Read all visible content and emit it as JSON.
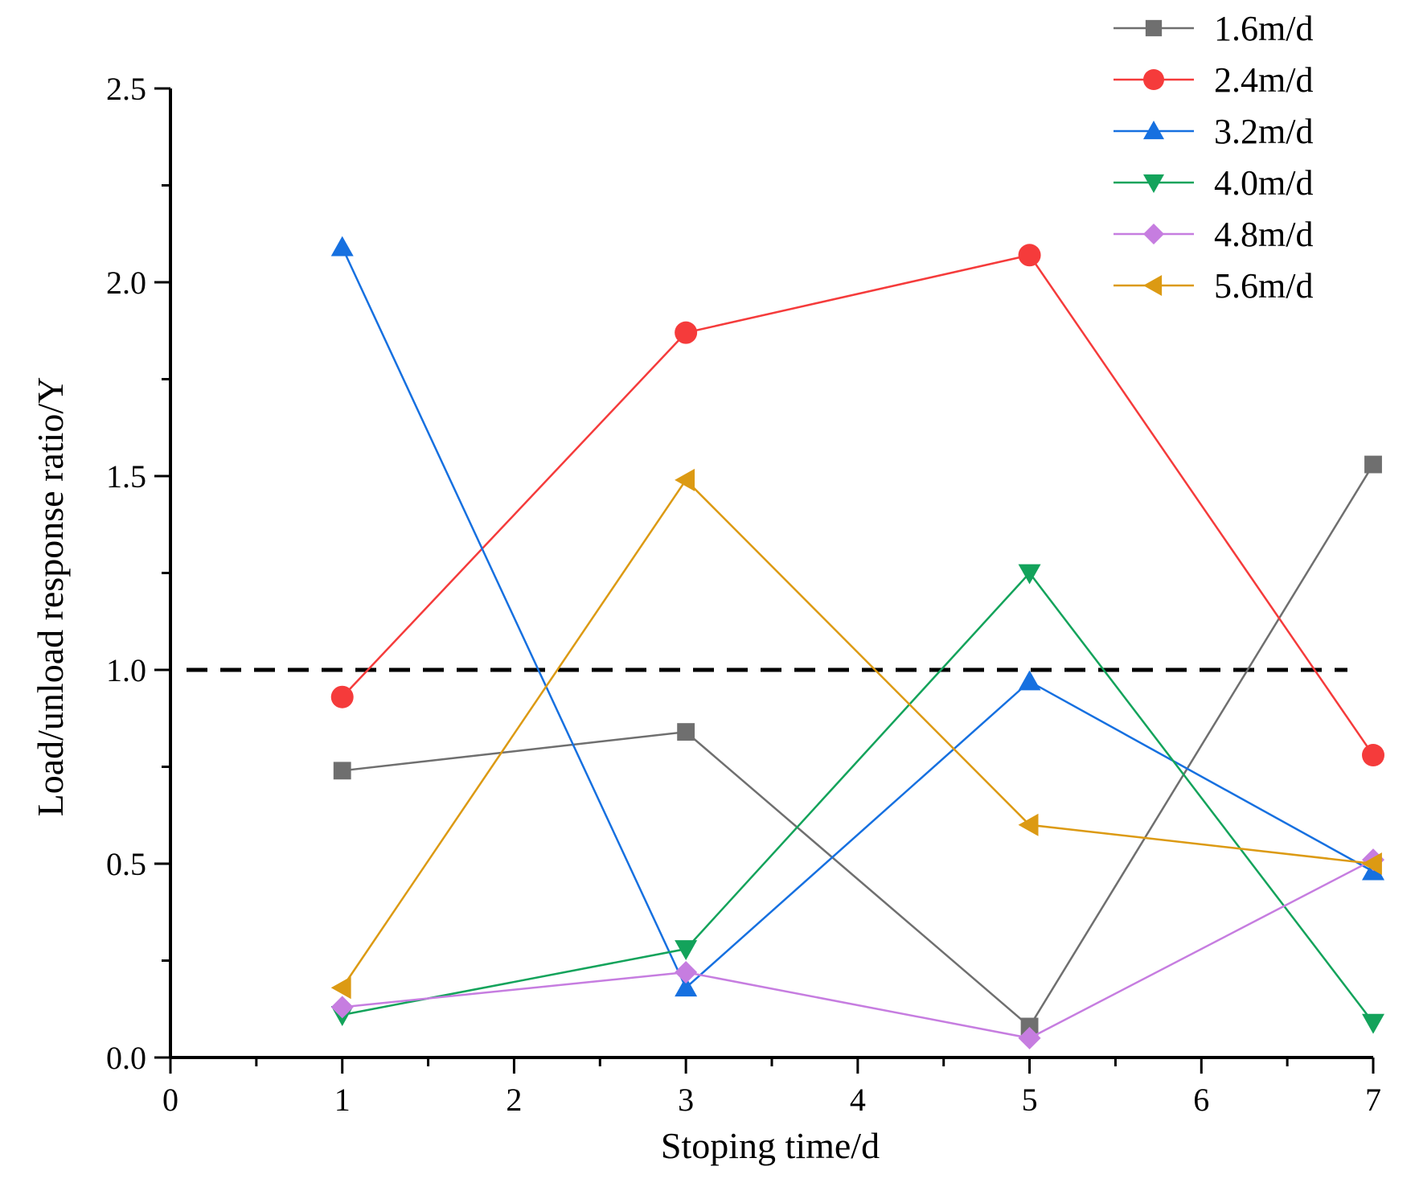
{
  "chart_data": {
    "type": "line",
    "title": "",
    "xlabel": "Stoping time/d",
    "ylabel": "Load/unload response ratio/Y",
    "xlim": [
      0,
      7
    ],
    "ylim": [
      0,
      2.5
    ],
    "x_ticks": [
      "0",
      "1",
      "2",
      "3",
      "4",
      "5",
      "6",
      "7"
    ],
    "y_ticks": [
      "0.0",
      "0.5",
      "1.0",
      "1.5",
      "2.0",
      "2.5"
    ],
    "reference_line": {
      "y": 1.0,
      "style": "dashed",
      "color": "#000000"
    },
    "legend_position": "top-right",
    "x": [
      1,
      3,
      5,
      7
    ],
    "series": [
      {
        "name": "1.6m/d",
        "marker": "square",
        "color": "#6f6f6f",
        "values": [
          0.74,
          0.84,
          0.08,
          1.53
        ]
      },
      {
        "name": "2.4m/d",
        "marker": "circle",
        "color": "#f53b3b",
        "values": [
          0.93,
          1.87,
          2.07,
          0.78
        ]
      },
      {
        "name": "3.2m/d",
        "marker": "triangle-up",
        "color": "#1670e0",
        "values": [
          2.09,
          0.18,
          0.97,
          0.48
        ]
      },
      {
        "name": "4.0m/d",
        "marker": "triangle-down",
        "color": "#13a35b",
        "values": [
          0.11,
          0.28,
          1.25,
          0.09
        ]
      },
      {
        "name": "4.8m/d",
        "marker": "diamond",
        "color": "#c67de0",
        "values": [
          0.13,
          0.22,
          0.05,
          0.51
        ]
      },
      {
        "name": "5.6m/d",
        "marker": "triangle-left",
        "color": "#dc9a13",
        "values": [
          0.18,
          1.49,
          0.6,
          0.5
        ]
      }
    ]
  }
}
